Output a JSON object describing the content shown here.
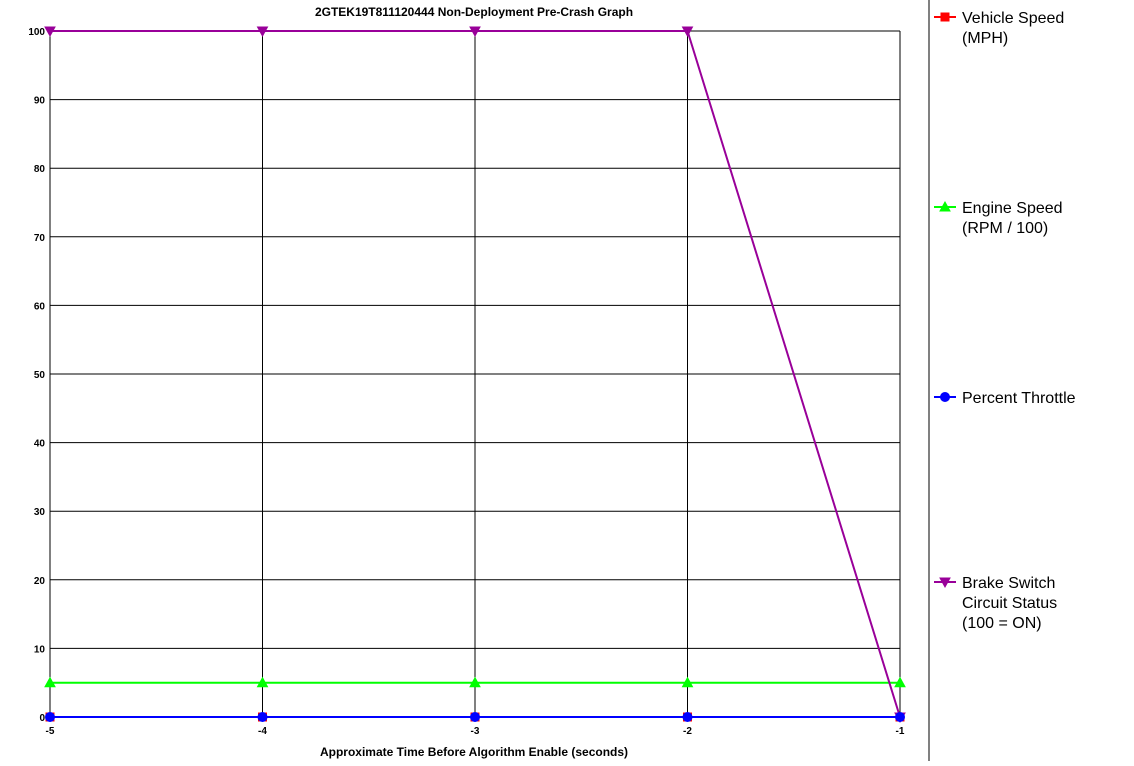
{
  "chart_data": {
    "type": "line",
    "title": "2GTEK19T811120444 Non-Deployment Pre-Crash Graph",
    "xlabel": "Approximate Time Before Algorithm Enable (seconds)",
    "ylabel": "",
    "x": [
      -5,
      -4,
      -3,
      -2,
      -1
    ],
    "x_tick_labels": [
      "-5",
      "-4",
      "-3",
      "-2",
      "-1"
    ],
    "y_tick_labels": [
      "0",
      "10",
      "20",
      "30",
      "40",
      "50",
      "60",
      "70",
      "80",
      "90",
      "100"
    ],
    "xlim": [
      -5,
      -1
    ],
    "ylim": [
      0,
      100
    ],
    "grid": true,
    "legend_position": "right",
    "series": [
      {
        "name": "Vehicle Speed (MPH)",
        "legend_lines": [
          "Vehicle Speed",
          "(MPH)"
        ],
        "values": [
          0,
          0,
          0,
          0,
          0
        ],
        "color": "#ff0000",
        "marker": "square-icon"
      },
      {
        "name": "Engine Speed (RPM / 100)",
        "legend_lines": [
          "Engine Speed",
          "(RPM / 100)"
        ],
        "values": [
          5,
          5,
          5,
          5,
          5
        ],
        "color": "#00ff00",
        "marker": "triangle-up-icon"
      },
      {
        "name": "Percent Throttle",
        "legend_lines": [
          "Percent Throttle"
        ],
        "values": [
          0,
          0,
          0,
          0,
          0
        ],
        "color": "#0000ff",
        "marker": "circle-icon"
      },
      {
        "name": "Brake Switch Circuit Status (100 = ON)",
        "legend_lines": [
          "Brake Switch",
          "Circuit Status",
          "(100 = ON)"
        ],
        "values": [
          100,
          100,
          100,
          100,
          0
        ],
        "color": "#990099",
        "marker": "triangle-down-icon"
      }
    ]
  }
}
